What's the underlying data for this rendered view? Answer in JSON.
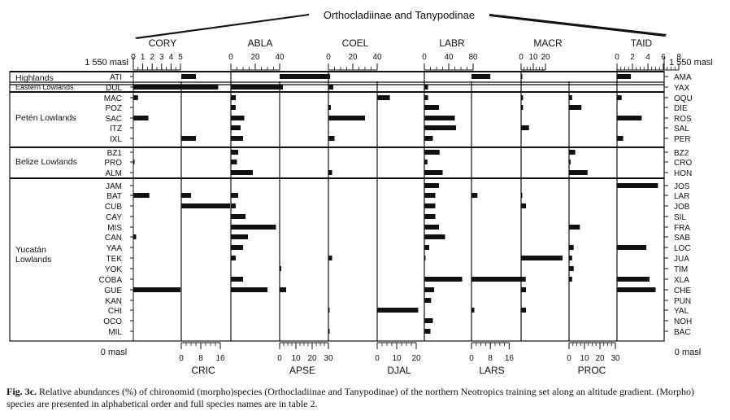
{
  "chart_data": {
    "type": "bar",
    "group_title": "Orthocladiinae and Tanypodinae",
    "left_altitude_top": "1 550 masl",
    "left_altitude_bottom": "0 masl",
    "right_altitude_top": "1 550 masl",
    "right_altitude_bottom": "0 masl",
    "regions": [
      {
        "label": "Highlands",
        "rows": [
          "ATI"
        ]
      },
      {
        "label": "Eastern Lowlands",
        "rows": [
          "DUL"
        ]
      },
      {
        "label": "Petén Lowlands",
        "rows": [
          "MAC",
          "POZ",
          "SAC",
          "ITZ",
          "IXL"
        ]
      },
      {
        "label": "Belize Lowlands",
        "rows": [
          "BZ1",
          "PRO",
          "ALM"
        ]
      },
      {
        "label": "Yucatán Lowlands",
        "rows": [
          "JAM",
          "BAT",
          "CUB",
          "CAY",
          "MIS",
          "CAN",
          "YAA",
          "TEK",
          "YOK",
          "COBA",
          "GUE",
          "KAN",
          "CHI",
          "OCO",
          "MIL"
        ]
      }
    ],
    "left_lakes": [
      "ATI",
      "DUL",
      "MAC",
      "POZ",
      "SAC",
      "ITZ",
      "IXL",
      "BZ1",
      "PRO",
      "ALM",
      "JAM",
      "BAT",
      "CUB",
      "CAY",
      "MIS",
      "CAN",
      "YAA",
      "TEK",
      "YOK",
      "COBA",
      "GUE",
      "KAN",
      "CHI",
      "OCO",
      "MIL"
    ],
    "right_lakes": [
      "AMA",
      "YAX",
      "OQU",
      "DIE",
      "ROS",
      "SAL",
      "PER",
      "BZ2",
      "CRO",
      "HON",
      "JOS",
      "LAR",
      "JOB",
      "SIL",
      "FRA",
      "SAB",
      "LOC",
      "JUA",
      "TIM",
      "XLA",
      "CHE",
      "PUN",
      "YAL",
      "NOH",
      "BAC"
    ],
    "top_taxa": [
      {
        "name": "CORY",
        "ticks": [
          "0",
          "1",
          "2",
          "3",
          "4",
          "5"
        ]
      },
      {
        "name": "ABLA",
        "ticks": [
          "0",
          "20",
          "40"
        ]
      },
      {
        "name": "COEL",
        "ticks": [
          "0",
          "20",
          "40"
        ]
      },
      {
        "name": "LABR",
        "ticks": [
          "0",
          "40",
          "80"
        ]
      },
      {
        "name": "MACR",
        "ticks": [
          "0",
          "10",
          "20"
        ]
      },
      {
        "name": "TAID",
        "ticks": [
          "0",
          "2",
          "4",
          "6",
          "8"
        ]
      }
    ],
    "bottom_taxa": [
      {
        "name": "CRIC",
        "ticks": [
          "0",
          "8",
          "16"
        ]
      },
      {
        "name": "APSE",
        "ticks": [
          "0",
          "10",
          "20",
          "30"
        ]
      },
      {
        "name": "DJAL",
        "ticks": [
          "0",
          "10",
          "20"
        ]
      },
      {
        "name": "LARS",
        "ticks": [
          "0",
          "8",
          "16"
        ]
      },
      {
        "name": "PROC",
        "ticks": [
          "0",
          "10",
          "20",
          "30"
        ]
      }
    ],
    "series": [
      {
        "name": "CORY",
        "values": [
          0,
          9,
          0.5,
          0,
          1.6,
          0,
          0,
          0,
          0.1,
          0,
          0,
          1.7,
          0,
          0,
          0,
          0.3,
          0,
          0,
          0,
          0,
          5,
          0,
          0,
          0,
          0
        ]
      },
      {
        "name": "CRIC",
        "values": [
          6,
          2,
          0,
          0,
          0,
          0,
          6,
          0,
          0,
          0,
          0,
          4,
          20,
          0,
          0,
          0,
          0,
          0,
          0,
          0,
          0,
          0,
          0,
          0,
          0
        ]
      },
      {
        "name": "ABLA",
        "values": [
          0,
          42,
          4,
          4,
          11,
          8,
          10,
          6,
          5,
          18,
          0,
          6,
          4,
          12,
          37,
          14,
          10,
          4,
          0,
          10,
          30,
          0,
          0,
          0,
          0
        ]
      },
      {
        "name": "APSE",
        "values": [
          31,
          2,
          0,
          0,
          0,
          0,
          0,
          0,
          0,
          0,
          0,
          0,
          0,
          0,
          0,
          0,
          0,
          0,
          1,
          0,
          4,
          0,
          0,
          0,
          0
        ]
      },
      {
        "name": "COEL",
        "values": [
          0,
          4,
          0,
          2,
          30,
          0,
          5,
          0,
          0,
          3,
          0,
          0,
          0,
          0,
          0,
          0,
          0,
          3,
          0,
          0,
          0,
          0,
          1,
          0,
          1
        ]
      },
      {
        "name": "DJAL",
        "values": [
          0,
          0,
          6.5,
          0,
          0,
          0,
          0,
          0,
          0,
          0,
          0,
          0,
          0,
          0,
          0,
          0,
          0,
          0,
          0,
          0,
          0,
          0,
          21,
          0,
          0
        ]
      },
      {
        "name": "LABR",
        "values": [
          0,
          6,
          6,
          24,
          50,
          52,
          14,
          25,
          5,
          30,
          24,
          18,
          18,
          18,
          24,
          34,
          8,
          2,
          0,
          62,
          16,
          11,
          0,
          14,
          10
        ]
      },
      {
        "name": "LARS",
        "values": [
          8,
          0,
          0,
          0,
          0,
          0,
          0,
          0,
          0,
          0,
          0,
          2.5,
          0,
          0,
          0,
          0,
          0,
          0,
          0,
          23,
          0,
          0,
          1.2,
          0,
          0
        ]
      },
      {
        "name": "MACR",
        "values": [
          1,
          0,
          1.6,
          1.6,
          0,
          6.5,
          0,
          0,
          0,
          0,
          0,
          1,
          4,
          0,
          0,
          0,
          0,
          34,
          0,
          0,
          4,
          0,
          4,
          0,
          0
        ]
      },
      {
        "name": "PROC",
        "values": [
          0,
          0,
          2,
          8,
          0,
          0,
          0,
          4,
          1,
          12,
          0,
          0,
          0,
          0,
          7,
          0,
          3,
          2,
          3,
          2,
          0,
          0,
          0,
          0,
          0
        ]
      },
      {
        "name": "TAID",
        "values": [
          1.8,
          0,
          0.6,
          0,
          3.2,
          0,
          0.8,
          0,
          0,
          0,
          5.3,
          0,
          0,
          0,
          0,
          0,
          3.8,
          0,
          0,
          4.2,
          5,
          0,
          0,
          0,
          0
        ]
      }
    ]
  },
  "caption": {
    "label": "Fig. 3c.",
    "text": " Relative abundances (%) of chironomid (morpho)species (Orthocladiinae and Tanypodinae) of the northern Neotropics training set along an altitude gradient. (Morpho) species are presented in alphabetical order and full species names are in table 2."
  }
}
